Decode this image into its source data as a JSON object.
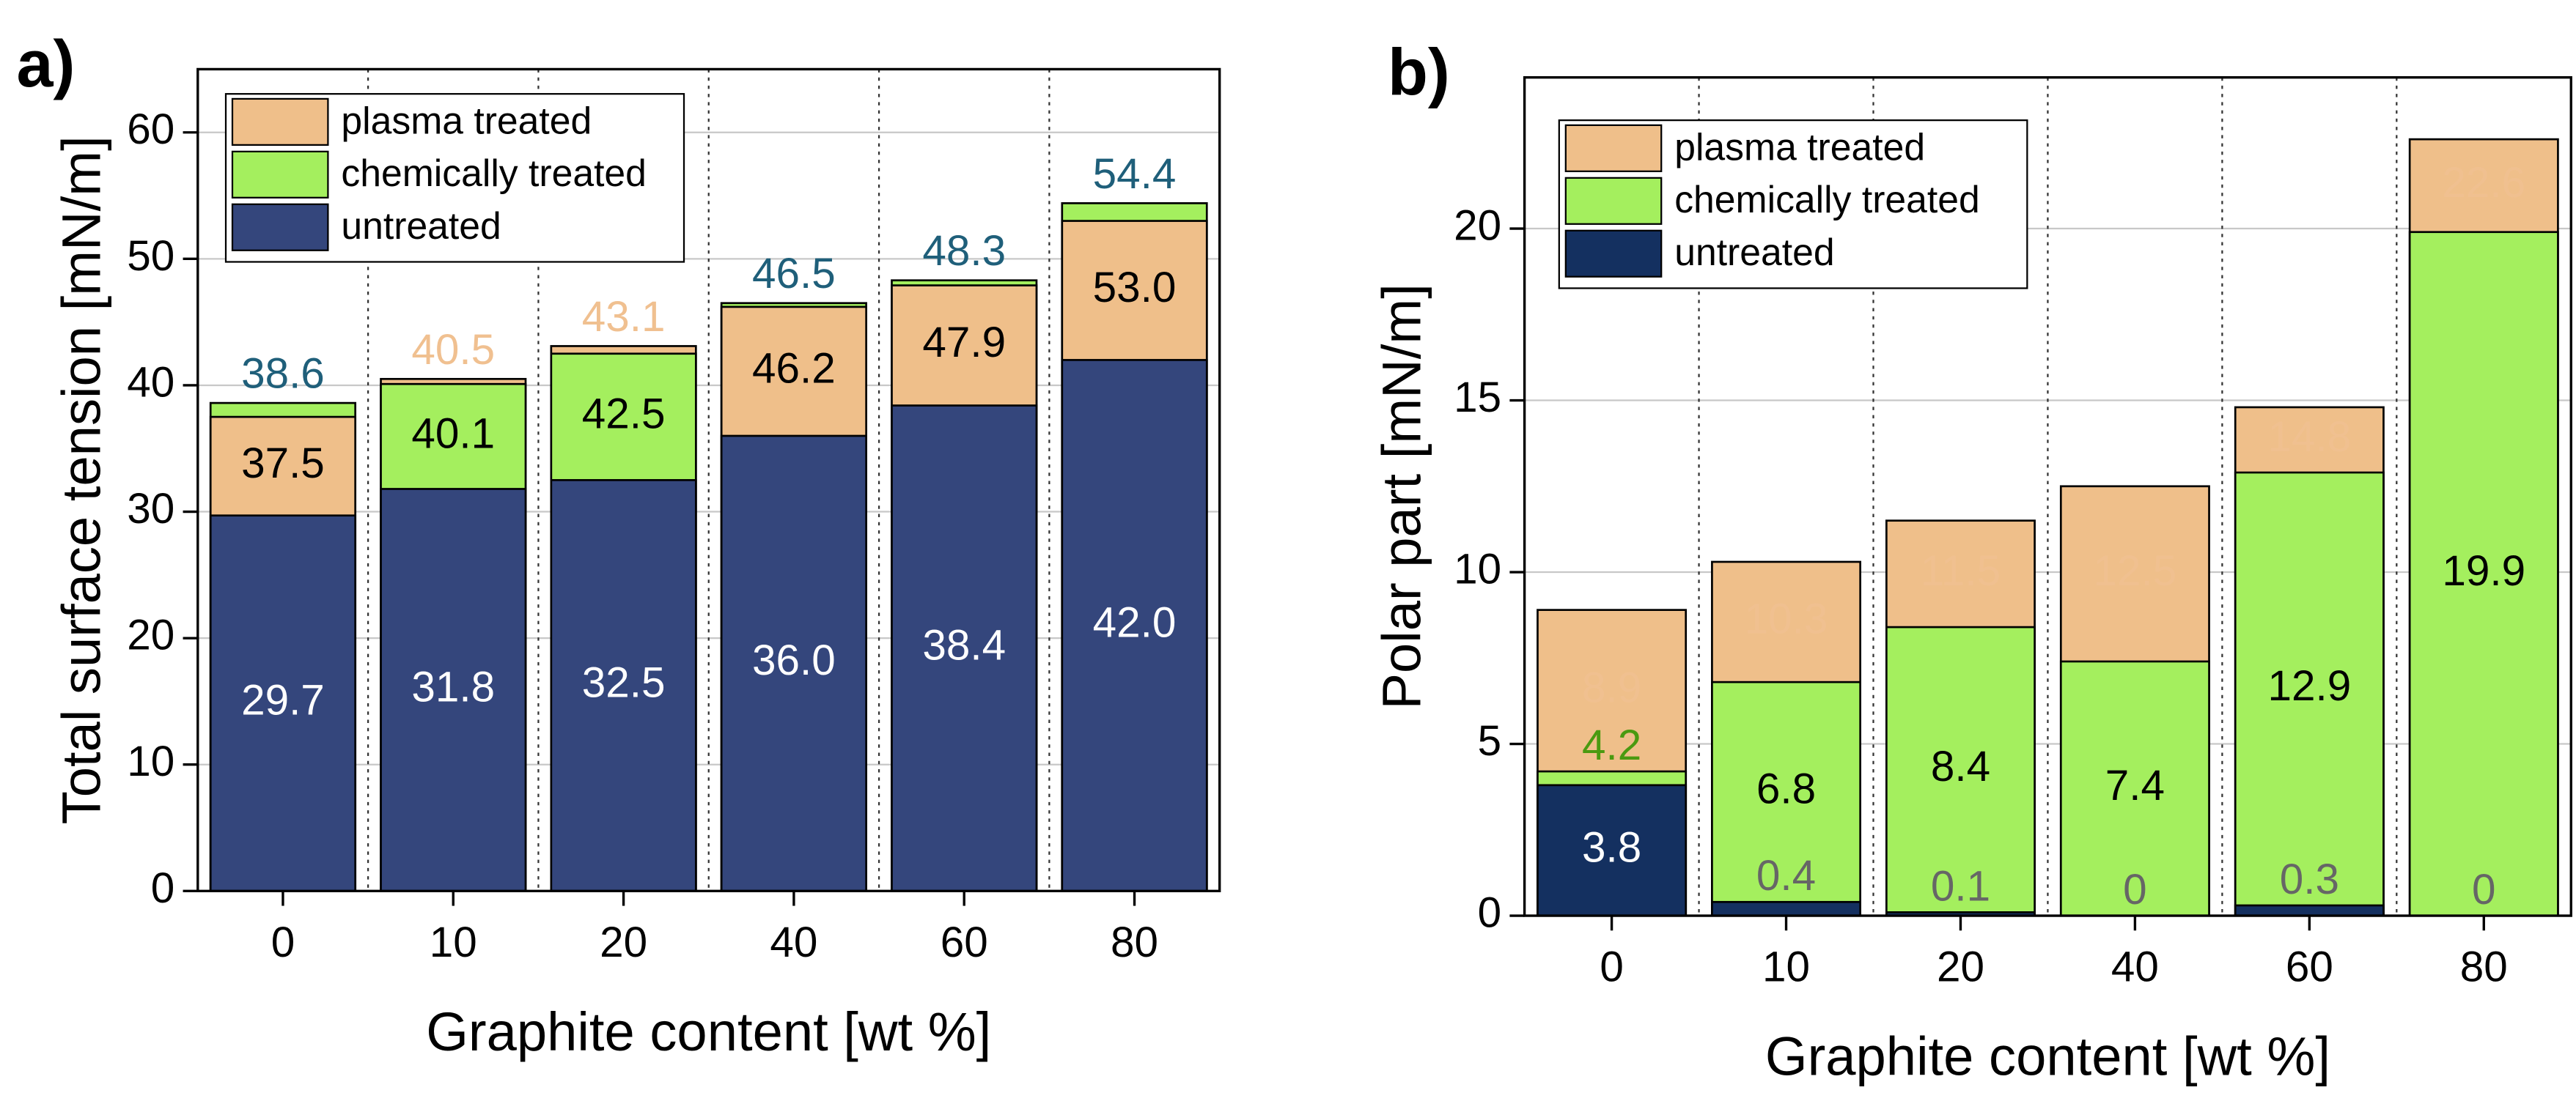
{
  "chart_data": [
    {
      "type": "bar",
      "barmode": "overlay",
      "panel_label": "a)",
      "top_label": "outside",
      "xlabel": "Graphite content [wt %]",
      "ylabel": "Total surface tension [mN/m]",
      "categories": [
        "0",
        "10",
        "20",
        "40",
        "60",
        "80"
      ],
      "ylim": [
        0,
        65
      ],
      "yticks": [
        0,
        10,
        20,
        30,
        40,
        50,
        60
      ],
      "grid": true,
      "legend": "upper left",
      "series": [
        {
          "name": "plasma treated",
          "color": "#efbf8a",
          "label_color": "#000000",
          "top_label_color": "#f0c090",
          "small_label_color": "#f0c090",
          "values": [
            37.5,
            40.5,
            43.1,
            46.2,
            47.9,
            53.0
          ],
          "value_labels": [
            "37.5",
            "40.5",
            "43.1",
            "46.2",
            "47.9",
            "53.0"
          ]
        },
        {
          "name": "chemically treated",
          "color": "#a4ef5e",
          "label_color": "#000000",
          "top_label_color": "#1f5f7a",
          "small_label_color": "#1f5f7a",
          "values": [
            38.6,
            40.1,
            42.5,
            46.5,
            48.3,
            54.4
          ]
        },
        {
          "name": "untreated",
          "color": "#34467c",
          "label_color": "#ffffff",
          "top_label_color": "#34467c",
          "small_label_color": "#666666",
          "values": [
            29.7,
            31.8,
            32.5,
            36.0,
            38.4,
            42.0
          ],
          "value_labels": [
            "29.7",
            "31.8",
            "32.5",
            "36.0",
            "38.4",
            "42.0"
          ]
        }
      ]
    },
    {
      "type": "bar",
      "barmode": "overlay",
      "panel_label": "b)",
      "top_label": "inside",
      "xlabel": "Graphite content [wt %]",
      "ylabel": "Polar part [mN/m]",
      "categories": [
        "0",
        "10",
        "20",
        "40",
        "60",
        "80"
      ],
      "ylim": [
        0,
        24.4
      ],
      "yticks": [
        0,
        5,
        10,
        15,
        20
      ],
      "grid": true,
      "legend": "upper left",
      "series": [
        {
          "name": "plasma treated",
          "color": "#efbf8a",
          "label_color": "#000000",
          "top_label_color": "#f0c090",
          "small_label_color": "#f0c090",
          "values": [
            8.9,
            10.3,
            11.5,
            12.5,
            14.8,
            22.6
          ]
        },
        {
          "name": "chemically treated",
          "color": "#a4ef5e",
          "label_color": "#000000",
          "top_label_color": "#000000",
          "small_label_color": "#4a9a10",
          "values": [
            4.2,
            6.8,
            8.4,
            7.4,
            12.9,
            19.9
          ]
        },
        {
          "name": "untreated",
          "color": "#143060",
          "label_color": "#ffffff",
          "top_label_color": "#143060",
          "small_label_color": "#666666",
          "values": [
            3.8,
            0.4,
            0.1,
            0,
            0.3,
            0
          ]
        }
      ]
    }
  ]
}
